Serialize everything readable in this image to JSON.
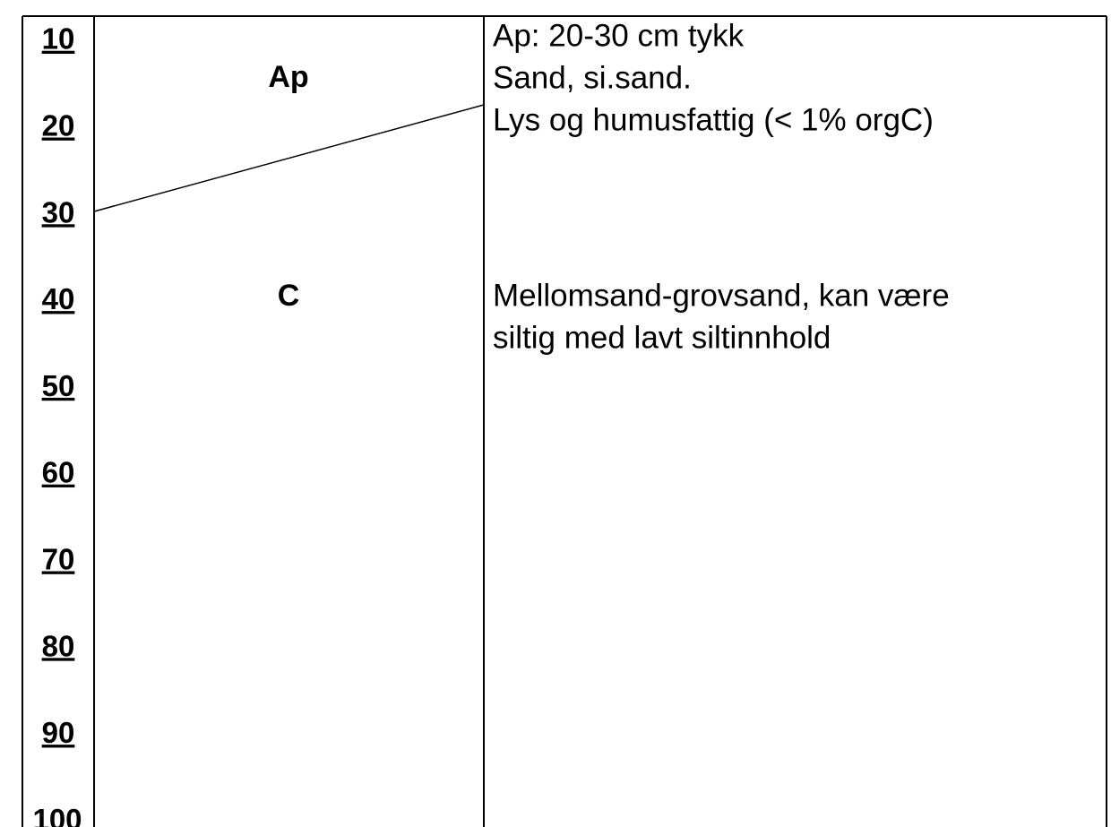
{
  "depths": [
    "10",
    "20",
    "30",
    "40",
    "50",
    "60",
    "70",
    "80",
    "90",
    "100"
  ],
  "horizons": [
    {
      "label": "Ap",
      "description": [
        "Ap: 20-30 cm tykk",
        "Sand, si.sand.",
        "Lys og humusfattig (< 1% orgC)"
      ]
    },
    {
      "label": "C",
      "description": [
        "Mellomsand-grovsand, kan være",
        "siltig med lavt siltinnhold"
      ]
    }
  ]
}
